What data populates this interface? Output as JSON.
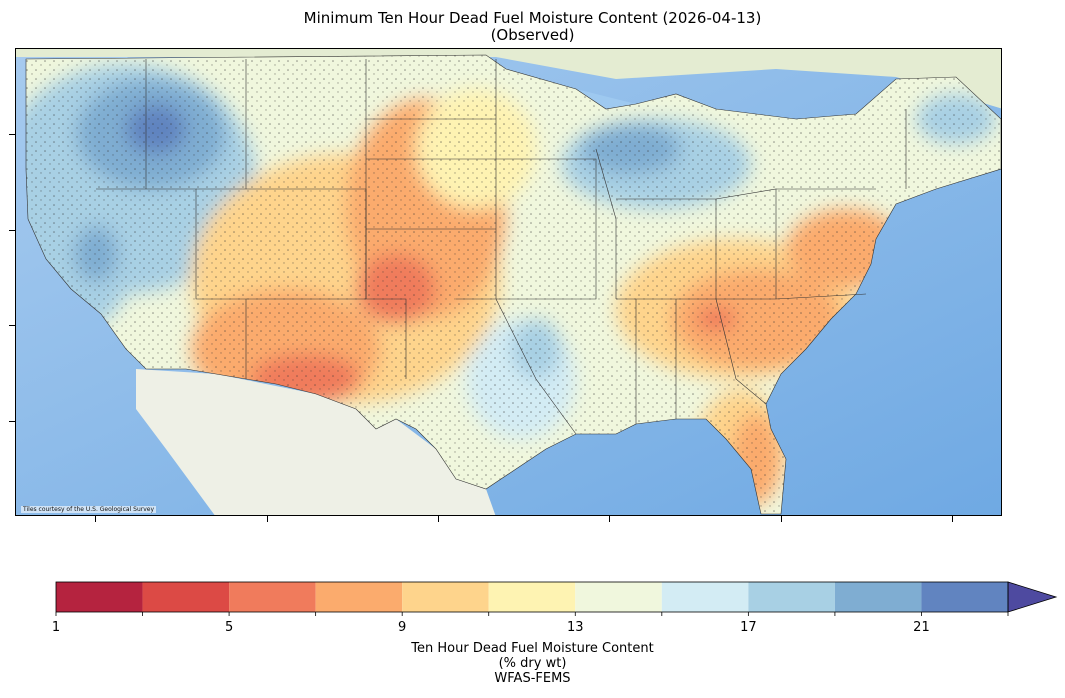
{
  "title": {
    "line1": "Minimum Ten Hour Dead Fuel Moisture Content (2026-04-13)",
    "line2": "(Observed)"
  },
  "map": {
    "credit": "Tiles courtesy of the U.S. Geological Survey",
    "region": "contiguous-united-states",
    "basemap_colors": {
      "ocean": "#6fa9e3",
      "ocean_light": "#bcdcf8",
      "lakes": "#9ec9f0",
      "land_outside": "#eef0e6",
      "canada": "#e4ecd2",
      "boundary": "#333333"
    }
  },
  "colorbar": {
    "label_line1": "Ten Hour Dead Fuel Moisture Content",
    "label_line2": "(% dry wt)",
    "label_line3": "WFAS-FEMS",
    "ticks": [
      "1",
      "5",
      "9",
      "13",
      "17",
      "21"
    ],
    "bounds": [
      1,
      3,
      5,
      7,
      9,
      11,
      13,
      15,
      17,
      19,
      21,
      23
    ],
    "colors": [
      "#b5233f",
      "#dc4a45",
      "#f07b5c",
      "#fbab6d",
      "#fed48c",
      "#fef3b2",
      "#f0f7dd",
      "#d3ecf4",
      "#a8d0e4",
      "#7fadd2",
      "#6184c0"
    ],
    "extend_color": "#4e4aa0",
    "extend": "max"
  },
  "chart_data": {
    "type": "heatmap",
    "title": "Minimum Ten Hour Dead Fuel Moisture Content (2026-04-13)",
    "subtitle": "(Observed)",
    "colorbar_label": "Ten Hour Dead Fuel Moisture Content (% dry wt)",
    "source": "WFAS-FEMS",
    "value_range": [
      1,
      23
    ],
    "units": "% dry wt"
  }
}
